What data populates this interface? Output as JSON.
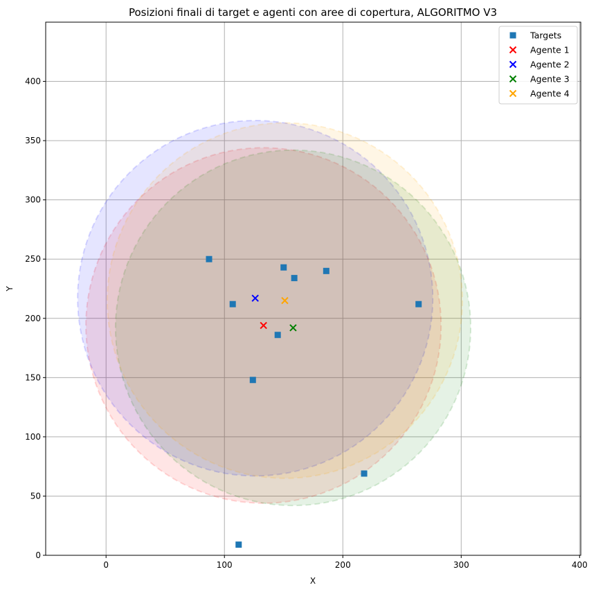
{
  "chart_data": {
    "type": "scatter",
    "title": "Posizioni finali di target e agenti con aree di copertura, ALGORITMO V3",
    "xlabel": "X",
    "ylabel": "Y",
    "xlim": [
      -51,
      401
    ],
    "ylim": [
      0,
      450
    ],
    "xticks": [
      0,
      100,
      200,
      300,
      400
    ],
    "yticks": [
      0,
      50,
      100,
      150,
      200,
      250,
      300,
      350,
      400
    ],
    "grid": true,
    "legend_position": "top-right",
    "targets": {
      "name": "Targets",
      "color": "#1f77b4",
      "marker": "square",
      "points": [
        {
          "x": 87,
          "y": 250
        },
        {
          "x": 150,
          "y": 243
        },
        {
          "x": 159,
          "y": 234
        },
        {
          "x": 186,
          "y": 240
        },
        {
          "x": 107,
          "y": 212
        },
        {
          "x": 264,
          "y": 212
        },
        {
          "x": 145,
          "y": 186
        },
        {
          "x": 124,
          "y": 148
        },
        {
          "x": 218,
          "y": 69
        },
        {
          "x": 112,
          "y": 9
        }
      ]
    },
    "agents": [
      {
        "name": "Agente 1",
        "color": "#ff0000",
        "x": 133,
        "y": 194,
        "radius": 150
      },
      {
        "name": "Agente 2",
        "color": "#0000ff",
        "x": 126,
        "y": 217,
        "radius": 150
      },
      {
        "name": "Agente 3",
        "color": "#008000",
        "x": 158,
        "y": 192,
        "radius": 150
      },
      {
        "name": "Agente 4",
        "color": "#ffa500",
        "x": 151,
        "y": 215,
        "radius": 150
      }
    ]
  }
}
